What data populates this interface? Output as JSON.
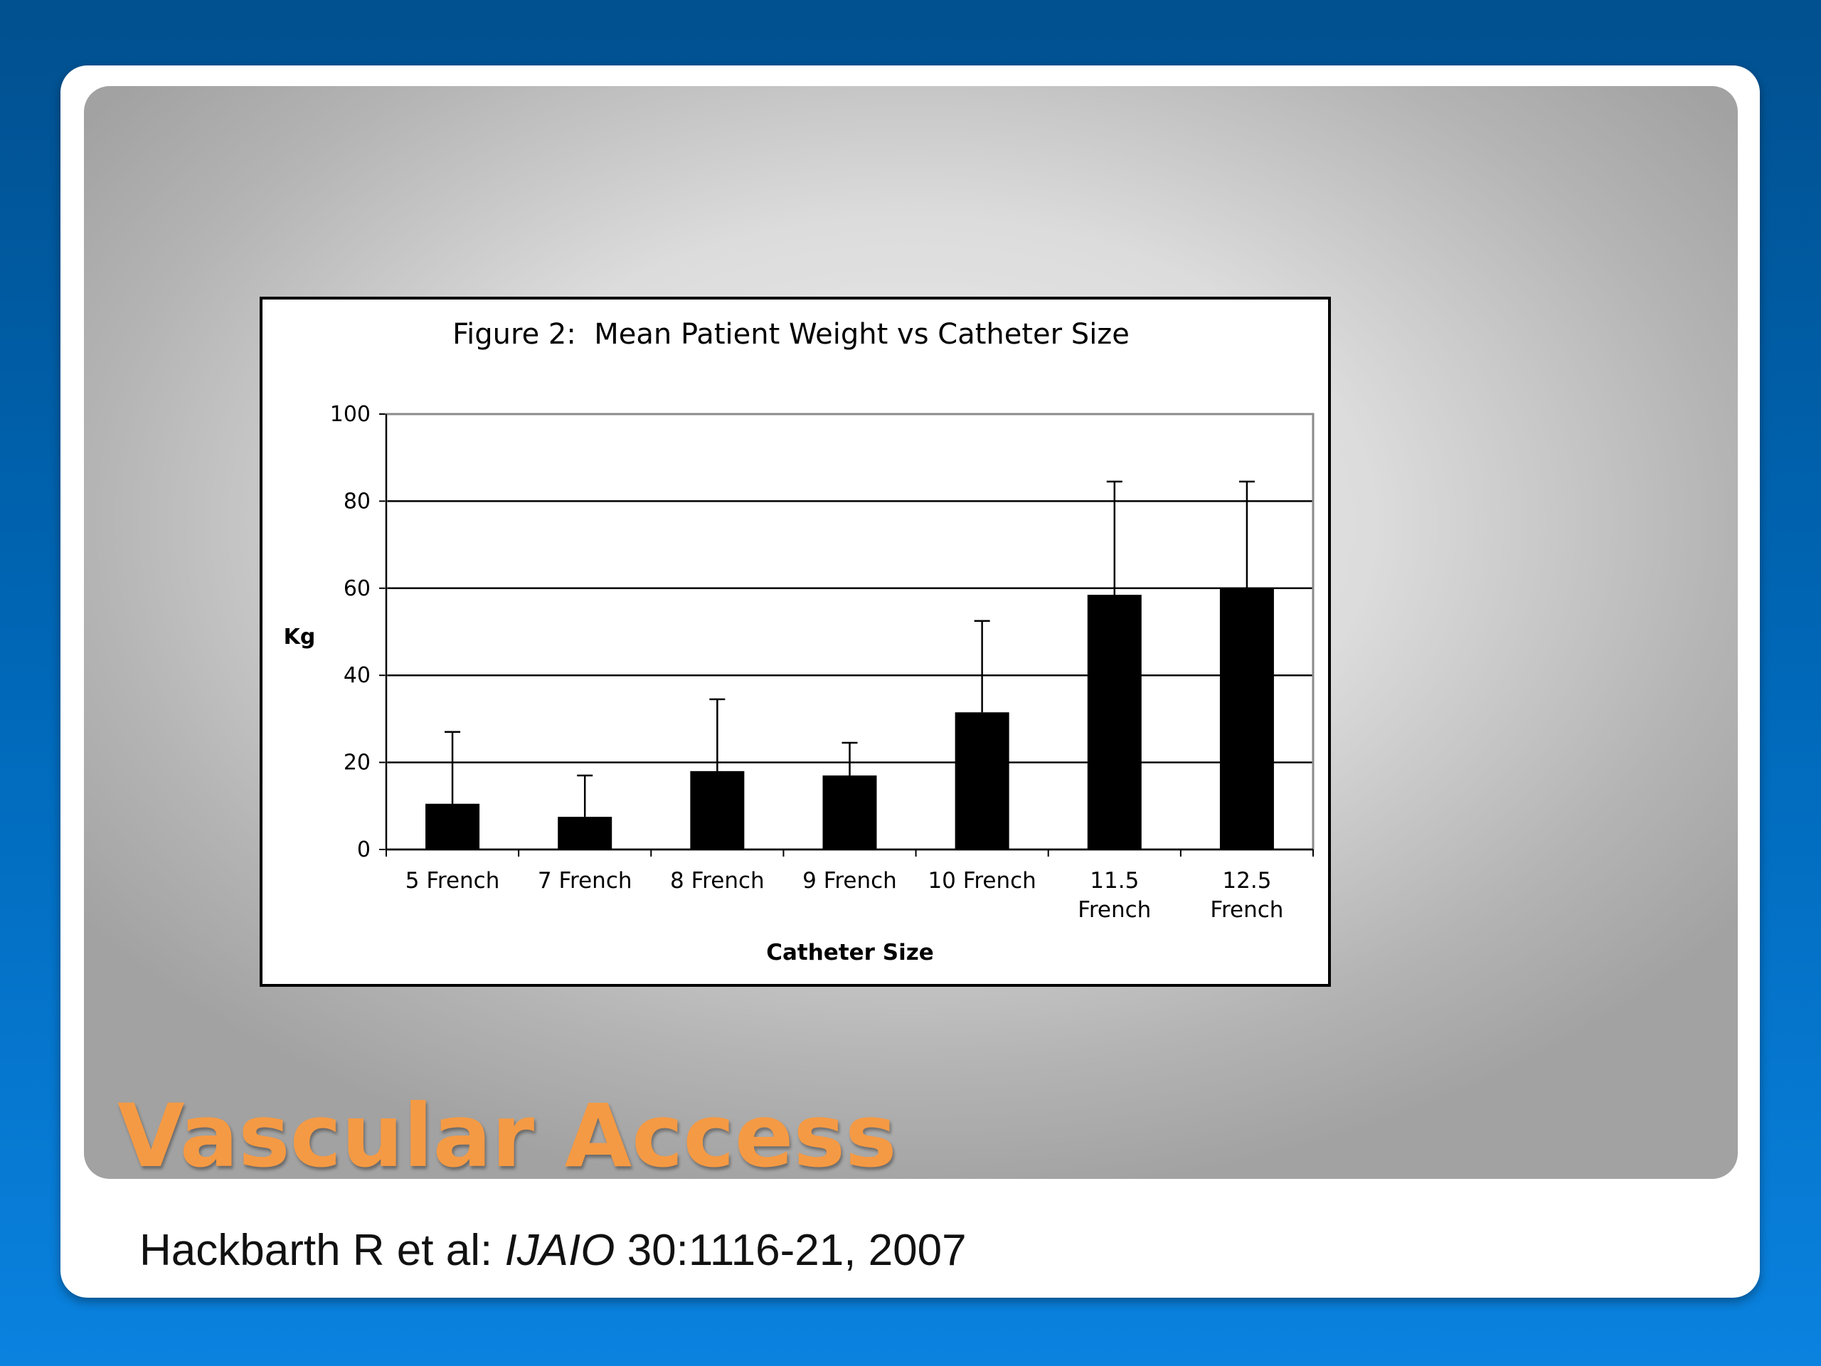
{
  "slide": {
    "title": "Vascular Access",
    "citation": {
      "authors": "Hackbarth R et al: ",
      "journal": "IJAIO",
      "details": " 30:1116-21, 2007"
    }
  },
  "colors": {
    "title": "#f59a44",
    "bars": "#000000",
    "background_top": "#01508f",
    "background_bottom": "#0a82df"
  },
  "chart_data": {
    "type": "bar",
    "title": "Figure 2:  Mean Patient Weight vs Catheter Size",
    "xlabel": "Catheter Size",
    "ylabel": "Kg",
    "ylim": [
      0,
      100
    ],
    "yticks": [
      0,
      20,
      40,
      60,
      80,
      100
    ],
    "grid": true,
    "legend": "none",
    "categories": [
      [
        "5 French"
      ],
      [
        "7 French"
      ],
      [
        "8 French"
      ],
      [
        "9 French"
      ],
      [
        "10 French"
      ],
      [
        "11.5",
        "French"
      ],
      [
        "12.5",
        "French"
      ]
    ],
    "values": [
      10.5,
      7.5,
      18,
      17,
      31.5,
      58.5,
      60
    ],
    "error_upper": [
      27,
      17,
      34.5,
      24.5,
      52.5,
      84.5,
      84.5
    ]
  }
}
